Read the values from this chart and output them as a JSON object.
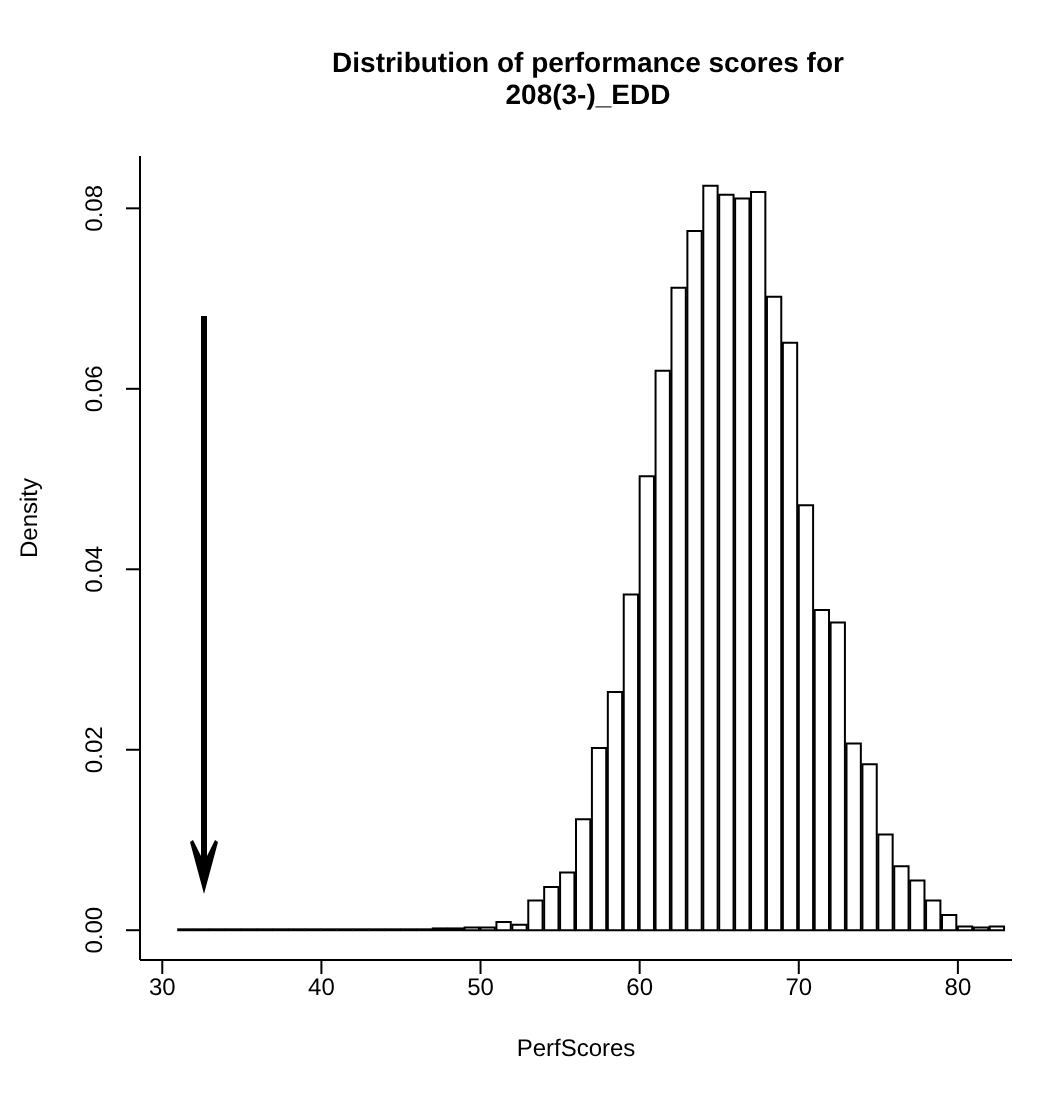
{
  "chart_data": {
    "type": "histogram",
    "title": "Distribution of performance scores for\n208(3-)_EDD",
    "xlabel": "PerfScores",
    "ylabel": "Density",
    "bins": [
      31,
      32,
      33,
      34,
      35,
      36,
      37,
      38,
      39,
      40,
      41,
      42,
      43,
      44,
      45,
      46,
      47,
      48,
      49,
      50,
      51,
      52,
      53,
      54,
      55,
      56,
      57,
      58,
      59,
      60,
      61,
      62,
      63,
      64,
      65,
      66,
      67,
      68,
      69,
      70,
      71,
      72,
      73,
      74,
      75,
      76,
      77,
      78,
      79,
      80,
      81,
      82,
      83
    ],
    "values": [
      0.0001,
      0.0001,
      0.0001,
      0.0001,
      0.0001,
      0.0001,
      0.0001,
      0.0001,
      0.0001,
      0.0001,
      0.0001,
      0.0001,
      0.0001,
      0.0001,
      0.0001,
      0.0001,
      0.0002,
      0.0002,
      0.0003,
      0.0003,
      0.0009,
      0.0006,
      0.0033,
      0.0048,
      0.0064,
      0.0123,
      0.0202,
      0.0264,
      0.0372,
      0.0503,
      0.062,
      0.0712,
      0.0775,
      0.0825,
      0.0815,
      0.0811,
      0.0818,
      0.0702,
      0.0651,
      0.0471,
      0.0355,
      0.0341,
      0.0207,
      0.0184,
      0.0106,
      0.0071,
      0.0055,
      0.0033,
      0.0017,
      0.0004,
      0.0003,
      0.0004
    ],
    "color": "#ffffff",
    "xlim": [
      28.6,
      83.4
    ],
    "xticks": [
      30,
      40,
      50,
      60,
      70,
      80
    ],
    "ylim": [
      -0.0033,
      0.0858
    ],
    "yticks": [
      {
        "value": 0,
        "label": "0.00"
      },
      {
        "value": 0.02,
        "label": "0.02"
      },
      {
        "value": 0.04,
        "label": "0.04"
      },
      {
        "value": 0.06,
        "label": "0.06"
      },
      {
        "value": 0.08,
        "label": "0.08"
      }
    ],
    "grid": false,
    "legend": false
  }
}
